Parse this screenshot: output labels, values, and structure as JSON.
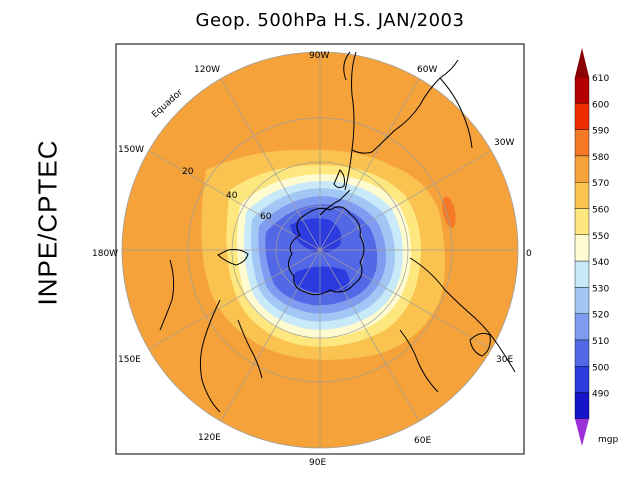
{
  "title": "Geop. 500hPa H.S. JAN/2003",
  "side_label": "INPE/CPTEC",
  "longitude_labels": [
    "90W",
    "60W",
    "30W",
    "0",
    "30E",
    "60E",
    "90E",
    "120E",
    "150E",
    "180W",
    "150W",
    "120W"
  ],
  "latitude_labels": [
    "20",
    "40",
    "60"
  ],
  "equator_label": "Equador",
  "colorbar": {
    "unit": "mgp",
    "levels": [
      {
        "value": "610",
        "color": "#b40000"
      },
      {
        "value": "600",
        "color": "#ee2c00"
      },
      {
        "value": "590",
        "color": "#f47a28"
      },
      {
        "value": "580",
        "color": "#f5a23a"
      },
      {
        "value": "570",
        "color": "#fac24f"
      },
      {
        "value": "560",
        "color": "#fde77e"
      },
      {
        "value": "550",
        "color": "#fffbd0"
      },
      {
        "value": "540",
        "color": "#c7e9f8"
      },
      {
        "value": "530",
        "color": "#a3c7f5"
      },
      {
        "value": "520",
        "color": "#7f9cf0"
      },
      {
        "value": "510",
        "color": "#5368e6"
      },
      {
        "value": "500",
        "color": "#2b3be0"
      },
      {
        "value": "490",
        "color": "#1414c8"
      }
    ],
    "top_triangle_color": "#8b0000",
    "bottom_triangle_color": "#9b30d8"
  }
}
